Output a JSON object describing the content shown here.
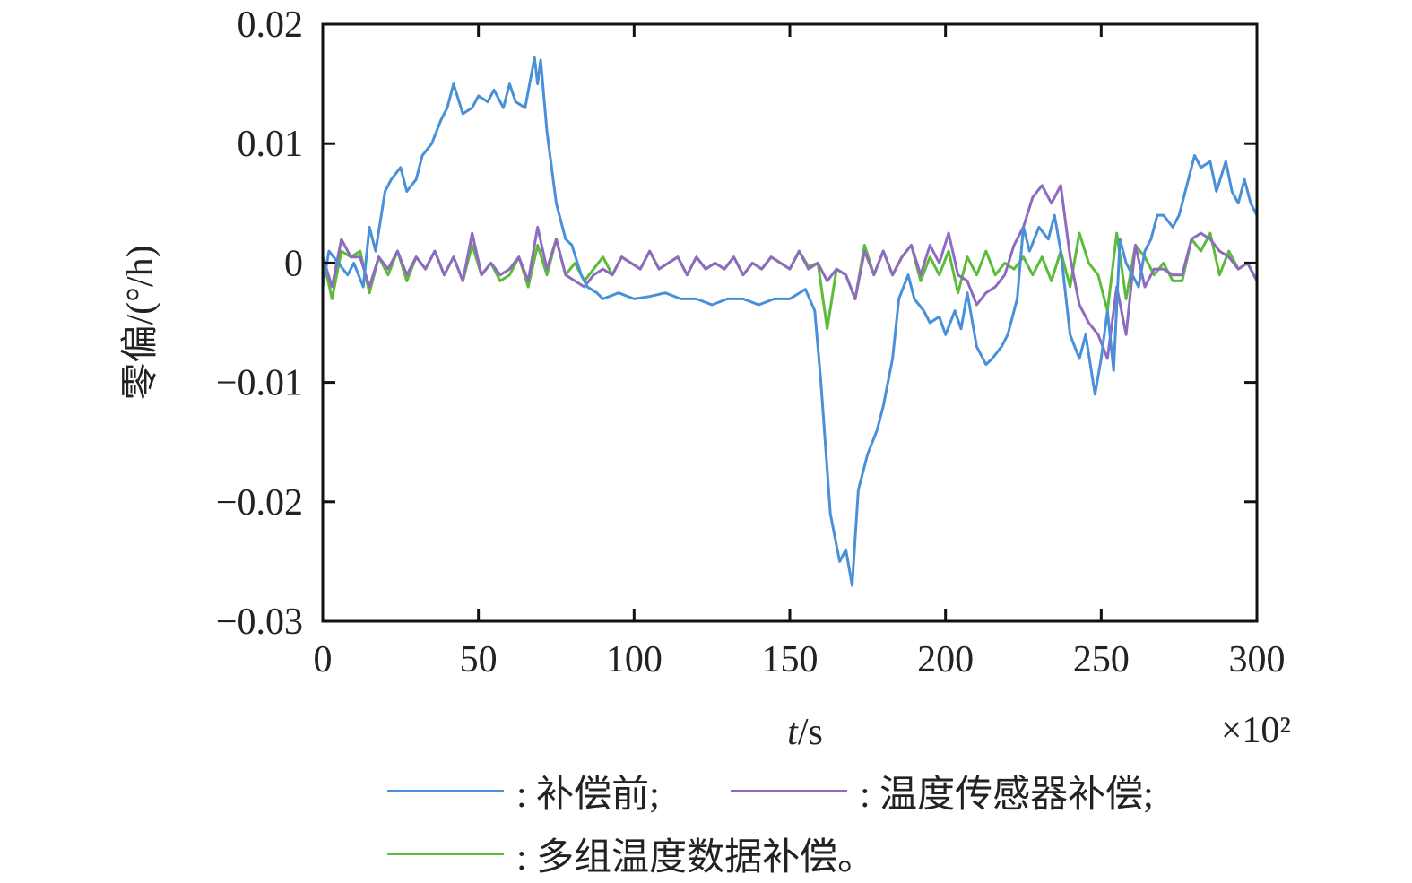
{
  "chart_data": {
    "type": "line",
    "title": "",
    "xlabel_italic": "t",
    "xlabel_rest": "/s",
    "x_multiplier": "×10²",
    "ylabel": "零偏/(°/h)",
    "xlim": [
      0,
      300
    ],
    "ylim": [
      -0.03,
      0.02
    ],
    "xticks": [
      0,
      50,
      100,
      150,
      200,
      250,
      300
    ],
    "xtick_labels": [
      "0",
      "50",
      "100",
      "150",
      "200",
      "250",
      "300"
    ],
    "yticks": [
      0.02,
      0.01,
      0,
      -0.01,
      -0.02,
      -0.03
    ],
    "ytick_labels": [
      "0.02",
      "0.01",
      "0",
      "−0.01",
      "−0.02",
      "−0.03"
    ],
    "grid": false,
    "legend_position": "bottom",
    "series": [
      {
        "name": "补偿前",
        "legend_label": ": 补偿前;",
        "color": "#4a90d9",
        "x": [
          0,
          2,
          5,
          8,
          10,
          13,
          15,
          17,
          20,
          22,
          25,
          27,
          30,
          32,
          35,
          38,
          40,
          42,
          45,
          48,
          50,
          53,
          55,
          58,
          60,
          62,
          65,
          68,
          69,
          70,
          72,
          75,
          78,
          80,
          83,
          85,
          88,
          90,
          95,
          100,
          105,
          110,
          115,
          120,
          125,
          130,
          135,
          140,
          145,
          150,
          155,
          158,
          160,
          163,
          166,
          168,
          170,
          172,
          175,
          178,
          180,
          183,
          185,
          188,
          190,
          193,
          195,
          198,
          200,
          203,
          205,
          207,
          210,
          213,
          215,
          218,
          220,
          223,
          225,
          227,
          230,
          233,
          235,
          237,
          240,
          243,
          245,
          248,
          250,
          252,
          254,
          256,
          258,
          260,
          262,
          264,
          266,
          268,
          270,
          273,
          275,
          277,
          280,
          282,
          285,
          287,
          290,
          292,
          294,
          296,
          298,
          300
        ],
        "y": [
          -0.002,
          0.001,
          0.0,
          -0.001,
          0.0,
          -0.002,
          0.003,
          0.001,
          0.006,
          0.007,
          0.008,
          0.006,
          0.007,
          0.009,
          0.01,
          0.012,
          0.013,
          0.015,
          0.0125,
          0.013,
          0.014,
          0.0135,
          0.0145,
          0.013,
          0.015,
          0.0135,
          0.013,
          0.0172,
          0.015,
          0.017,
          0.011,
          0.005,
          0.002,
          0.0015,
          -0.001,
          -0.002,
          -0.0025,
          -0.003,
          -0.0025,
          -0.003,
          -0.0028,
          -0.0025,
          -0.003,
          -0.003,
          -0.0035,
          -0.003,
          -0.003,
          -0.0035,
          -0.003,
          -0.003,
          -0.0022,
          -0.004,
          -0.01,
          -0.021,
          -0.025,
          -0.024,
          -0.027,
          -0.019,
          -0.016,
          -0.014,
          -0.012,
          -0.008,
          -0.003,
          -0.001,
          -0.003,
          -0.004,
          -0.005,
          -0.0045,
          -0.006,
          -0.004,
          -0.0055,
          -0.0025,
          -0.007,
          -0.0085,
          -0.008,
          -0.007,
          -0.006,
          -0.003,
          0.003,
          0.001,
          0.003,
          0.002,
          0.004,
          0.001,
          -0.006,
          -0.008,
          -0.006,
          -0.011,
          -0.008,
          -0.004,
          -0.009,
          0.002,
          0.0,
          -0.001,
          -0.002,
          0.001,
          0.002,
          0.004,
          0.004,
          0.003,
          0.004,
          0.006,
          0.009,
          0.008,
          0.0085,
          0.006,
          0.0085,
          0.006,
          0.005,
          0.007,
          0.005,
          0.004
        ]
      },
      {
        "name": "温度传感器补偿",
        "legend_label": ": 温度传感器补偿;",
        "color": "#8e6bbf",
        "x_start": 0,
        "x_step": 3,
        "y": [
          0.0005,
          -0.002,
          0.002,
          0.0005,
          0.0005,
          -0.002,
          0.0005,
          -0.0005,
          0.001,
          -0.001,
          0.0005,
          -0.0005,
          0.001,
          -0.001,
          0.0005,
          -0.0015,
          0.0025,
          -0.001,
          0.0,
          -0.001,
          -0.0005,
          0.0005,
          -0.0015,
          0.003,
          -0.0005,
          0.002,
          -0.001,
          -0.0015,
          -0.002,
          -0.001,
          -0.0005,
          -0.001,
          0.0005,
          0.0,
          -0.0005,
          0.001,
          -0.0005,
          0.0,
          0.0005,
          -0.001,
          0.0005,
          -0.0005,
          0.0,
          -0.0005,
          0.0005,
          -0.001,
          0.0,
          -0.0005,
          0.0005,
          0.0,
          -0.0005,
          0.001,
          -0.0005,
          0.0,
          -0.0015,
          -0.0005,
          -0.001,
          -0.003,
          0.001,
          -0.001,
          0.001,
          -0.001,
          0.0005,
          0.0015,
          -0.001,
          0.0015,
          0.0,
          0.0025,
          -0.001,
          -0.0015,
          -0.0035,
          -0.0025,
          -0.002,
          -0.001,
          0.0015,
          0.003,
          0.0055,
          0.0065,
          0.005,
          0.0065,
          0.0005,
          -0.0035,
          -0.005,
          -0.006,
          -0.008,
          -0.002,
          -0.006,
          0.0015,
          -0.002,
          -0.0005,
          -0.0005,
          -0.001,
          -0.001,
          0.002,
          0.0025,
          0.002,
          0.001,
          0.0005,
          -0.0005,
          0.0,
          -0.0015
        ]
      },
      {
        "name": "多组温度数据补偿",
        "legend_label": ": 多组温度数据补偿。",
        "color": "#5dbb3a",
        "x_start": 0,
        "x_step": 3,
        "y": [
          0.0005,
          -0.003,
          0.001,
          0.0005,
          0.001,
          -0.0025,
          0.0005,
          -0.001,
          0.001,
          -0.0015,
          0.0005,
          -0.0005,
          0.001,
          -0.001,
          0.0005,
          -0.0015,
          0.0015,
          -0.001,
          0.0,
          -0.0015,
          -0.001,
          0.0005,
          -0.002,
          0.0015,
          -0.001,
          0.002,
          -0.001,
          0.0,
          -0.0015,
          -0.0005,
          0.0005,
          -0.001,
          0.0005,
          0.0,
          -0.0005,
          0.001,
          -0.0005,
          0.0,
          0.0005,
          -0.001,
          0.0005,
          -0.0005,
          0.0,
          -0.0005,
          0.0005,
          -0.001,
          0.0,
          -0.0005,
          0.0005,
          0.0,
          -0.0005,
          0.001,
          -0.0003,
          0.0,
          -0.0055,
          -0.0005,
          -0.001,
          -0.003,
          0.0015,
          -0.001,
          0.001,
          -0.001,
          0.0005,
          0.0015,
          -0.0015,
          0.0005,
          -0.001,
          0.001,
          -0.0025,
          0.0005,
          -0.001,
          0.001,
          -0.001,
          0.0,
          -0.0005,
          0.0005,
          -0.001,
          0.0005,
          -0.0015,
          0.001,
          -0.002,
          0.0025,
          0.0,
          -0.001,
          -0.004,
          0.0025,
          -0.003,
          0.0015,
          0.0005,
          -0.001,
          0.0,
          -0.0015,
          -0.0015,
          0.002,
          0.001,
          0.0025,
          -0.001,
          0.001,
          -0.0005,
          0.0,
          -0.0015
        ]
      }
    ]
  }
}
